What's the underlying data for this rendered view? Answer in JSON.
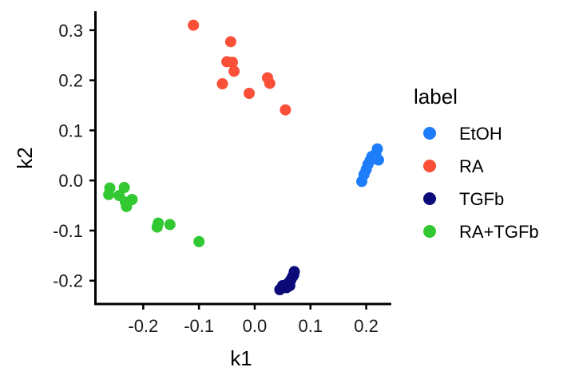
{
  "chart_data": {
    "type": "scatter",
    "xlabel": "k1",
    "ylabel": "k2",
    "xlim": [
      -0.285,
      0.245
    ],
    "ylim": [
      -0.245,
      0.338
    ],
    "x_ticks": [
      -0.2,
      -0.1,
      0.0,
      0.1,
      0.2
    ],
    "x_tick_labels": [
      "-0.2",
      "-0.1",
      "0.0",
      "0.1",
      "0.2"
    ],
    "y_ticks": [
      -0.2,
      -0.1,
      0.0,
      0.1,
      0.2,
      0.3
    ],
    "y_tick_labels": [
      "-0.2",
      "-0.1",
      "0.0",
      "0.1",
      "0.2",
      "0.3"
    ],
    "grid": false,
    "legend": {
      "title": "label",
      "placement": "right"
    },
    "series": [
      {
        "name": "EtOH",
        "color": "#1e7dfa",
        "points": [
          [
            0.192,
            -0.002
          ],
          [
            0.196,
            0.012
          ],
          [
            0.2,
            0.022
          ],
          [
            0.203,
            0.032
          ],
          [
            0.207,
            0.04
          ],
          [
            0.21,
            0.048
          ],
          [
            0.214,
            0.044
          ],
          [
            0.217,
            0.053
          ],
          [
            0.22,
            0.063
          ],
          [
            0.222,
            0.041
          ]
        ]
      },
      {
        "name": "RA",
        "color": "#fa5037",
        "points": [
          [
            -0.11,
            0.31
          ],
          [
            -0.043,
            0.277
          ],
          [
            -0.05,
            0.237
          ],
          [
            -0.04,
            0.236
          ],
          [
            -0.037,
            0.218
          ],
          [
            -0.058,
            0.193
          ],
          [
            -0.01,
            0.174
          ],
          [
            0.023,
            0.205
          ],
          [
            0.027,
            0.194
          ],
          [
            0.055,
            0.141
          ]
        ]
      },
      {
        "name": "TGFb",
        "color": "#0a0a78",
        "points": [
          [
            0.045,
            -0.218
          ],
          [
            0.05,
            -0.21
          ],
          [
            0.055,
            -0.212
          ],
          [
            0.06,
            -0.205
          ],
          [
            0.063,
            -0.21
          ],
          [
            0.065,
            -0.198
          ],
          [
            0.068,
            -0.192
          ],
          [
            0.07,
            -0.188
          ],
          [
            0.071,
            -0.182
          ],
          [
            0.057,
            -0.214
          ]
        ]
      },
      {
        "name": "RA+TGFb",
        "color": "#32c832",
        "points": [
          [
            -0.26,
            -0.015
          ],
          [
            -0.262,
            -0.028
          ],
          [
            -0.243,
            -0.03
          ],
          [
            -0.234,
            -0.014
          ],
          [
            -0.232,
            -0.043
          ],
          [
            -0.23,
            -0.052
          ],
          [
            -0.22,
            -0.038
          ],
          [
            -0.173,
            -0.085
          ],
          [
            -0.175,
            -0.093
          ],
          [
            -0.152,
            -0.088
          ],
          [
            -0.1,
            -0.122
          ]
        ]
      }
    ]
  }
}
